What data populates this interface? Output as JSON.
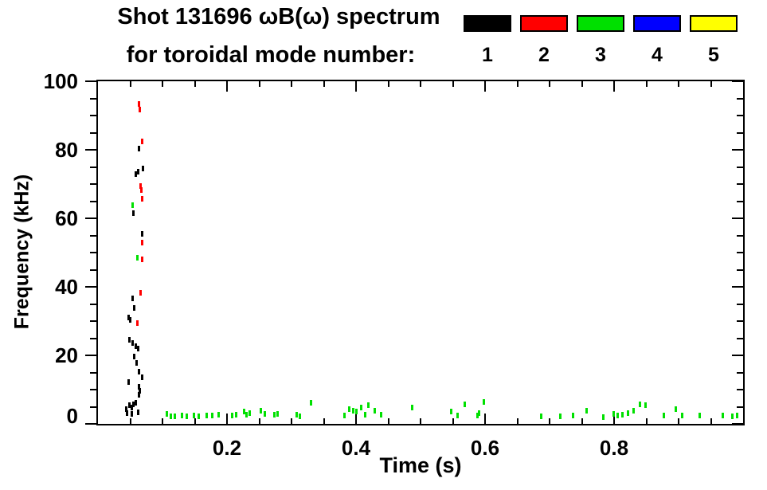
{
  "title": {
    "line1": "Shot 131696 ωB(ω) spectrum",
    "line2": "for toroidal mode number:"
  },
  "legend": {
    "items": [
      {
        "label": "1",
        "color": "#000000"
      },
      {
        "label": "2",
        "color": "#ff0000"
      },
      {
        "label": "3",
        "color": "#00e000"
      },
      {
        "label": "4",
        "color": "#0000ff"
      },
      {
        "label": "5",
        "color": "#ffff00"
      }
    ]
  },
  "chart_data": {
    "type": "scatter",
    "title": "Shot 131696 ωB(ω) spectrum for toroidal mode number:",
    "xlabel": "Time (s)",
    "ylabel": "Frequency (kHz)",
    "xlim": [
      0,
      1.0
    ],
    "ylim": [
      0,
      100
    ],
    "x_major_ticks": [
      0.2,
      0.4,
      0.6,
      0.8
    ],
    "x_tick_labels": [
      "0.2",
      "0.4",
      "0.6",
      "0.8"
    ],
    "x_minor_step": 0.05,
    "y_major_ticks": [
      0,
      20,
      40,
      60,
      80,
      100
    ],
    "y_tick_labels": [
      "0",
      "20",
      "40",
      "60",
      "80",
      "100"
    ],
    "y_minor_step": 5,
    "grid": false,
    "legend_position": "top-right above plot",
    "marker": "small vertical dash",
    "series": [
      {
        "name": "n=1",
        "color": "#000000",
        "points": [
          [
            0.064,
            80.3
          ],
          [
            0.062,
            73.7
          ],
          [
            0.07,
            74.5
          ],
          [
            0.059,
            72.8
          ],
          [
            0.055,
            61.6
          ],
          [
            0.069,
            55.5
          ],
          [
            0.054,
            36.6
          ],
          [
            0.056,
            33.9
          ],
          [
            0.048,
            31.0
          ],
          [
            0.05,
            30.3
          ],
          [
            0.049,
            24.5
          ],
          [
            0.054,
            23.5
          ],
          [
            0.059,
            22.7
          ],
          [
            0.062,
            22.0
          ],
          [
            0.056,
            19.7
          ],
          [
            0.06,
            17.7
          ],
          [
            0.064,
            15.3
          ],
          [
            0.068,
            13.5
          ],
          [
            0.048,
            12.3
          ],
          [
            0.063,
            10.7
          ],
          [
            0.065,
            9.6
          ],
          [
            0.064,
            8.6
          ],
          [
            0.044,
            4.2
          ],
          [
            0.049,
            5.4
          ],
          [
            0.052,
            4.7
          ],
          [
            0.055,
            5.6
          ],
          [
            0.059,
            6.1
          ],
          [
            0.045,
            3.1
          ],
          [
            0.053,
            2.8
          ],
          [
            0.062,
            3.4
          ]
        ]
      },
      {
        "name": "n=2",
        "color": "#ff0000",
        "points": [
          [
            0.064,
            93.4
          ],
          [
            0.065,
            91.8
          ],
          [
            0.068,
            82.4
          ],
          [
            0.066,
            69.4
          ],
          [
            0.067,
            68.2
          ],
          [
            0.069,
            65.8
          ],
          [
            0.068,
            52.8
          ],
          [
            0.069,
            48.0
          ],
          [
            0.066,
            38.2
          ],
          [
            0.061,
            29.5
          ]
        ]
      },
      {
        "name": "n=3",
        "color": "#00e000",
        "points": [
          [
            0.054,
            63.8
          ],
          [
            0.061,
            48.5
          ],
          [
            0.107,
            2.8
          ],
          [
            0.113,
            2.3
          ],
          [
            0.119,
            2.1
          ],
          [
            0.13,
            2.4
          ],
          [
            0.138,
            2.1
          ],
          [
            0.149,
            2.4
          ],
          [
            0.156,
            2.1
          ],
          [
            0.168,
            2.4
          ],
          [
            0.177,
            2.4
          ],
          [
            0.187,
            2.6
          ],
          [
            0.208,
            2.4
          ],
          [
            0.214,
            2.6
          ],
          [
            0.226,
            3.5
          ],
          [
            0.23,
            2.6
          ],
          [
            0.235,
            3.1
          ],
          [
            0.253,
            3.8
          ],
          [
            0.259,
            2.8
          ],
          [
            0.273,
            2.6
          ],
          [
            0.279,
            2.8
          ],
          [
            0.308,
            2.6
          ],
          [
            0.313,
            2.1
          ],
          [
            0.33,
            6.1
          ],
          [
            0.382,
            2.4
          ],
          [
            0.389,
            4.2
          ],
          [
            0.396,
            3.8
          ],
          [
            0.4,
            3.5
          ],
          [
            0.408,
            4.7
          ],
          [
            0.414,
            2.6
          ],
          [
            0.419,
            5.4
          ],
          [
            0.429,
            3.8
          ],
          [
            0.439,
            2.6
          ],
          [
            0.487,
            4.7
          ],
          [
            0.547,
            3.5
          ],
          [
            0.558,
            2.4
          ],
          [
            0.568,
            5.6
          ],
          [
            0.588,
            2.4
          ],
          [
            0.591,
            3.1
          ],
          [
            0.598,
            6.5
          ],
          [
            0.687,
            2.1
          ],
          [
            0.717,
            2.1
          ],
          [
            0.736,
            2.4
          ],
          [
            0.757,
            3.8
          ],
          [
            0.783,
            1.9
          ],
          [
            0.799,
            2.8
          ],
          [
            0.806,
            2.4
          ],
          [
            0.813,
            2.6
          ],
          [
            0.822,
            3.1
          ],
          [
            0.83,
            3.8
          ],
          [
            0.84,
            5.8
          ],
          [
            0.849,
            5.4
          ],
          [
            0.877,
            2.4
          ],
          [
            0.896,
            4.2
          ],
          [
            0.905,
            2.4
          ],
          [
            0.933,
            2.4
          ],
          [
            0.969,
            2.4
          ],
          [
            0.983,
            2.1
          ],
          [
            0.991,
            2.4
          ]
        ]
      },
      {
        "name": "n=4",
        "color": "#0000ff",
        "points": []
      },
      {
        "name": "n=5",
        "color": "#ffff00",
        "points": []
      }
    ]
  }
}
